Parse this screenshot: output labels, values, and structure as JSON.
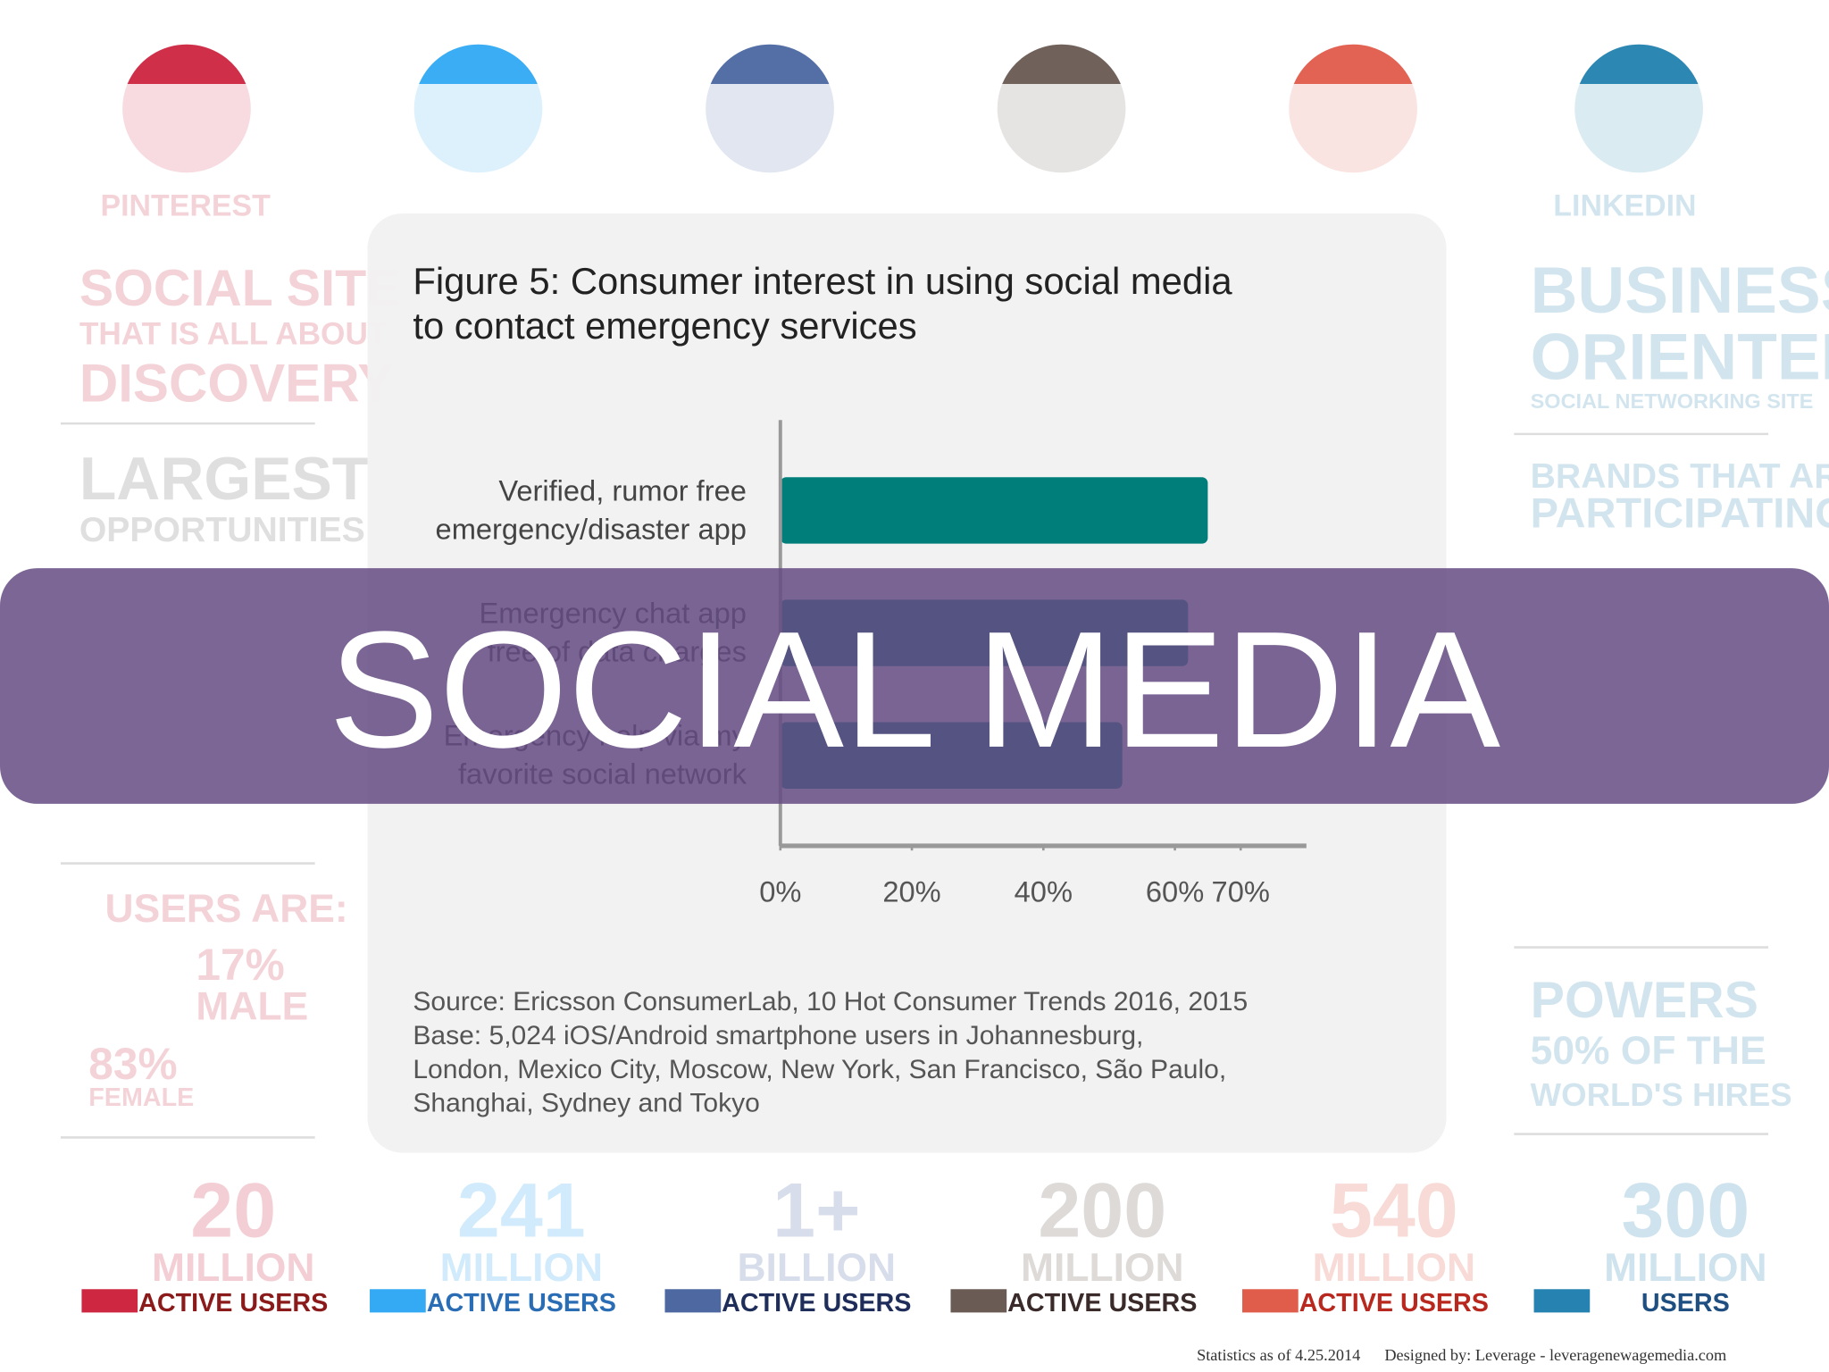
{
  "banner": "SOCIAL MEDIA",
  "chart_data": {
    "type": "bar",
    "orientation": "horizontal",
    "title": [
      "Figure 5: Consumer interest in using social media",
      "to contact emergency services"
    ],
    "categories": [
      [
        "Verified, rumor free",
        "emergency/disaster app"
      ],
      [
        "Emergency chat app",
        "free of data charges"
      ],
      [
        "Emergency help via my",
        "favorite social network"
      ]
    ],
    "values": [
      65,
      62,
      52
    ],
    "color": "#007f7a",
    "xlim": [
      0,
      80
    ],
    "xticks": [
      {
        "value": 0,
        "label": "0%"
      },
      {
        "value": 20,
        "label": "20%"
      },
      {
        "value": 40,
        "label": "40%"
      },
      {
        "value": 60,
        "label": "60%"
      },
      {
        "value": 70,
        "label": "70%"
      }
    ],
    "notes": [
      "Source: Ericsson ConsumerLab, 10 Hot Consumer Trends 2016, 2015",
      "Base: 5,024 iOS/Android smartphone users in Johannesburg,",
      "London, Mexico City, Moscow, New York, San Francisco, São Paulo,",
      "Shanghai, Sydney and Tokyo"
    ]
  },
  "infographic": {
    "platforms": [
      "PINTEREST",
      "LINKEDIN"
    ],
    "left": [
      "SOCIAL SITE",
      "THAT IS ALL ABOUT",
      "DISCOVERY",
      "LARGEST",
      "OPPORTUNITIES",
      "USERS ARE:",
      "17%",
      "MALE",
      "83%",
      "FEMALE"
    ],
    "right": [
      "BUSINESS",
      "ORIENTED",
      "SOCIAL NETWORKING SITE",
      "BRANDS THAT ARE",
      "PARTICIPATING",
      "POWERS",
      "50% OF THE",
      "WORLD'S HIRES"
    ],
    "stats": [
      {
        "number": "20",
        "unit": "MILLION",
        "caption": "ACTIVE USERS"
      },
      {
        "number": "241",
        "unit": "MILLION",
        "caption": "ACTIVE USERS"
      },
      {
        "number": "1+",
        "unit": "BILLION",
        "caption": "ACTIVE USERS"
      },
      {
        "number": "200",
        "unit": "MILLION",
        "caption": "ACTIVE USERS"
      },
      {
        "number": "540",
        "unit": "MILLION",
        "caption": "ACTIVE USERS"
      },
      {
        "number": "300",
        "unit": "MILLION",
        "caption": "USERS"
      }
    ],
    "footer": [
      "Statistics as of 4.25.2014",
      "Designed by: Leverage - leveragenewagemedia.com"
    ]
  }
}
